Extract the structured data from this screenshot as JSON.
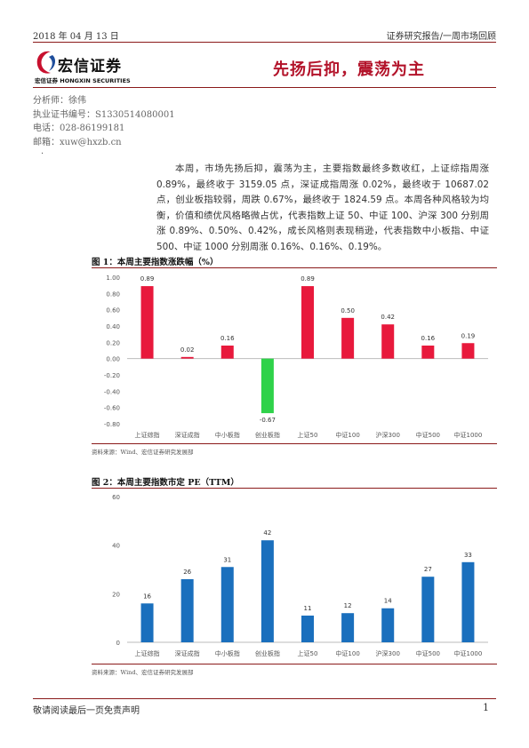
{
  "header": {
    "date": "2018 年 04 月 13 日",
    "report_type": "证券研究报告/一周市场回顾",
    "logo_name": "宏信证券",
    "logo_sub": "宏信证券 HONGXIN SECURITIES",
    "title": "先扬后抑，震荡为主"
  },
  "analyst": {
    "name": "分析师：徐伟",
    "license": "执业证书编号：S1330514080001",
    "phone": "电话：028-86199181",
    "email": "邮箱：xuw@hxzb.cn"
  },
  "bullet": "·",
  "summary": "本周，市场先扬后抑，震荡为主，主要指数最终多数收红，上证综指周涨 0.89%，最终收于 3159.05 点，深证成指周涨 0.02%，最终收于 10687.02 点，创业板指较弱，周跌 0.67%，最终收于 1824.59 点。本周各种风格较为均衡，价值和绩优风格略微占优，代表指数上证 50、中证 100、沪深 300 分别周涨 0.89%、0.50%、0.42%，成长风格则表现稍逊，代表指数中小板指、中证 500、中证 1000 分别周涨 0.16%、0.16%、0.19%。",
  "figure1": {
    "title": "图 1：本周主要指数涨跌幅（%）",
    "source": "资料来源：Wind、宏信证券研究发展部"
  },
  "figure2": {
    "title": "图 2：本周主要指数市定 PE（TTM）",
    "source": "资料来源：Wind、宏信证券研究发展部"
  },
  "chart_data": [
    {
      "type": "bar",
      "categories": [
        "上证综指",
        "深证成指",
        "中小板指",
        "创业板指",
        "上证50",
        "中证100",
        "沪深300",
        "中证500",
        "中证1000"
      ],
      "values": [
        0.89,
        0.02,
        0.16,
        -0.67,
        0.89,
        0.5,
        0.42,
        0.16,
        0.19
      ],
      "labels": [
        "0.89",
        "0.02",
        "0.16",
        "-0.67",
        "0.89",
        "0.50",
        "0.42",
        "0.16",
        "0.19"
      ],
      "ylim": [
        -0.8,
        1.0
      ],
      "yticks": [
        "1.00",
        "0.80",
        "0.60",
        "0.40",
        "0.20",
        "0.00",
        "-0.20",
        "-0.40",
        "-0.60",
        "-0.80"
      ],
      "title": "本周主要指数涨跌幅（%）",
      "colors": {
        "positive": "#e8193c",
        "negative": "#2fd24a"
      }
    },
    {
      "type": "bar",
      "categories": [
        "上证综指",
        "深证成指",
        "中小板指",
        "创业板指",
        "上证50",
        "中证100",
        "沪深300",
        "中证500",
        "中证1000"
      ],
      "values": [
        16,
        26,
        31,
        42,
        11,
        12,
        14,
        27,
        33
      ],
      "labels": [
        "16",
        "26",
        "31",
        "42",
        "11",
        "12",
        "14",
        "27",
        "33"
      ],
      "ylim": [
        0,
        60
      ],
      "yticks": [
        "60",
        "40",
        "20",
        "0"
      ],
      "title": "本周主要指数市定 PE（TTM）",
      "colors": {
        "bar": "#1a6fbd"
      }
    }
  ],
  "footer": {
    "disclaimer": "敬请阅读最后一页免责声明",
    "page": "1"
  },
  "colors": {
    "accent": "#b3132a",
    "rule": "#8a1a1a"
  }
}
